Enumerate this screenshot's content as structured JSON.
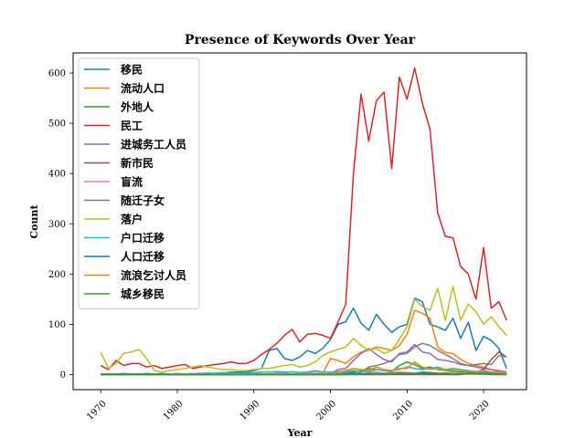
{
  "chart_data": {
    "type": "line",
    "title": "Presence of Keywords Over Year",
    "xlabel": "Year",
    "ylabel": "Count",
    "xlim": [
      1966.4,
      2025.6
    ],
    "ylim": [
      -30,
      640
    ],
    "x_ticks": [
      1970,
      1980,
      1990,
      2000,
      2010,
      2020
    ],
    "y_ticks": [
      0,
      100,
      200,
      300,
      400,
      500,
      600
    ],
    "grid": false,
    "legend_position": "top-left",
    "x": [
      1970,
      1971,
      1972,
      1973,
      1974,
      1975,
      1976,
      1977,
      1978,
      1979,
      1980,
      1981,
      1982,
      1983,
      1984,
      1985,
      1986,
      1987,
      1988,
      1989,
      1990,
      1991,
      1992,
      1993,
      1994,
      1995,
      1996,
      1997,
      1998,
      1999,
      2000,
      2001,
      2002,
      2003,
      2004,
      2005,
      2006,
      2007,
      2008,
      2009,
      2010,
      2011,
      2012,
      2013,
      2014,
      2015,
      2016,
      2017,
      2018,
      2019,
      2020,
      2021,
      2022,
      2023
    ],
    "series": [
      {
        "name": "移民",
        "color": "#1f77b4",
        "values": [
          1,
          1,
          1,
          2,
          1,
          1,
          2,
          1,
          2,
          1,
          2,
          1,
          2,
          2,
          3,
          2,
          3,
          5,
          5,
          5,
          8,
          12,
          48,
          52,
          32,
          28,
          35,
          48,
          42,
          52,
          70,
          100,
          105,
          132,
          102,
          88,
          120,
          100,
          84,
          95,
          100,
          152,
          145,
          100,
          95,
          88,
          112,
          72,
          104,
          48,
          76,
          68,
          52,
          12
        ]
      },
      {
        "name": "流动人口",
        "color": "#ff7f0e",
        "values": [
          0,
          0,
          0,
          0,
          0,
          0,
          0,
          0,
          0,
          0,
          0,
          0,
          0,
          0,
          0,
          0,
          0,
          0,
          0,
          0,
          0,
          0,
          0,
          0,
          0,
          0,
          0,
          0,
          1,
          2,
          32,
          28,
          22,
          35,
          45,
          48,
          55,
          52,
          48,
          58,
          80,
          128,
          122,
          112,
          55,
          44,
          42,
          30,
          22,
          18,
          15,
          10,
          5,
          2
        ]
      },
      {
        "name": "外地人",
        "color": "#2ca02c",
        "values": [
          1,
          1,
          1,
          1,
          1,
          1,
          1,
          1,
          1,
          1,
          1,
          1,
          1,
          1,
          1,
          1,
          1,
          1,
          1,
          1,
          1,
          1,
          1,
          1,
          1,
          1,
          1,
          1,
          1,
          1,
          1,
          2,
          3,
          5,
          8,
          12,
          10,
          8,
          6,
          18,
          25,
          20,
          12,
          15,
          10,
          8,
          6,
          5,
          5,
          4,
          3,
          3,
          2,
          1
        ]
      },
      {
        "name": "民工",
        "color": "#d62728",
        "values": [
          18,
          10,
          28,
          18,
          22,
          22,
          15,
          18,
          12,
          15,
          18,
          20,
          12,
          15,
          18,
          20,
          22,
          25,
          22,
          22,
          28,
          40,
          50,
          62,
          78,
          90,
          65,
          80,
          82,
          78,
          72,
          105,
          140,
          400,
          558,
          465,
          545,
          562,
          410,
          592,
          548,
          610,
          540,
          488,
          322,
          275,
          272,
          215,
          200,
          150,
          253,
          132,
          145,
          108
        ]
      },
      {
        "name": "进城务工人员",
        "color": "#9467bd",
        "values": [
          0,
          0,
          0,
          0,
          0,
          0,
          0,
          0,
          0,
          0,
          0,
          0,
          0,
          0,
          0,
          0,
          0,
          0,
          0,
          0,
          0,
          0,
          0,
          0,
          0,
          0,
          0,
          0,
          0,
          0,
          2,
          10,
          12,
          28,
          42,
          52,
          40,
          30,
          25,
          42,
          45,
          60,
          45,
          42,
          30,
          28,
          25,
          20,
          18,
          15,
          12,
          10,
          8,
          5
        ]
      },
      {
        "name": "新市民",
        "color": "#8c564b",
        "values": [
          0,
          0,
          0,
          0,
          0,
          0,
          0,
          0,
          0,
          0,
          0,
          0,
          0,
          0,
          0,
          0,
          0,
          0,
          0,
          0,
          0,
          0,
          0,
          0,
          0,
          0,
          0,
          0,
          0,
          0,
          0,
          0,
          0,
          0,
          0,
          0,
          0,
          0,
          0,
          0,
          0,
          0,
          0,
          0,
          0,
          0,
          0,
          0,
          2,
          5,
          10,
          30,
          45,
          35
        ]
      },
      {
        "name": "盲流",
        "color": "#e377c2",
        "values": [
          0,
          0,
          0,
          0,
          0,
          0,
          0,
          0,
          0,
          1,
          2,
          1,
          2,
          3,
          2,
          2,
          3,
          2,
          1,
          1,
          2,
          5,
          5,
          4,
          3,
          6,
          4,
          3,
          5,
          5,
          4,
          6,
          5,
          8,
          6,
          4,
          5,
          3,
          4,
          5,
          4,
          3,
          4,
          3,
          2,
          3,
          2,
          2,
          1,
          1,
          1,
          1,
          1,
          0
        ]
      },
      {
        "name": "随迁子女",
        "color": "#7f7f7f",
        "values": [
          0,
          0,
          0,
          0,
          0,
          0,
          0,
          0,
          0,
          0,
          0,
          0,
          0,
          0,
          0,
          0,
          0,
          0,
          0,
          0,
          0,
          0,
          0,
          0,
          0,
          0,
          0,
          0,
          0,
          0,
          0,
          0,
          0,
          0,
          5,
          15,
          18,
          22,
          28,
          40,
          42,
          55,
          62,
          58,
          48,
          40,
          32,
          22,
          18,
          20,
          22,
          20,
          38,
          35
        ]
      },
      {
        "name": "落户",
        "color": "#bcbd22",
        "values": [
          45,
          12,
          22,
          42,
          45,
          50,
          32,
          8,
          5,
          8,
          10,
          12,
          15,
          18,
          15,
          12,
          10,
          10,
          8,
          8,
          10,
          12,
          12,
          15,
          18,
          20,
          15,
          18,
          25,
          38,
          45,
          50,
          55,
          72,
          58,
          48,
          52,
          42,
          48,
          70,
          95,
          150,
          135,
          128,
          172,
          108,
          175,
          108,
          140,
          125,
          100,
          115,
          95,
          78
        ]
      },
      {
        "name": "户口迁移",
        "color": "#17becf",
        "values": [
          0,
          0,
          0,
          0,
          0,
          0,
          0,
          0,
          0,
          0,
          0,
          1,
          1,
          1,
          2,
          3,
          4,
          3,
          3,
          3,
          4,
          5,
          5,
          6,
          5,
          5,
          4,
          5,
          8,
          5,
          5,
          6,
          6,
          8,
          6,
          6,
          10,
          8,
          8,
          10,
          15,
          12,
          10,
          12,
          15,
          10,
          12,
          10,
          8,
          6,
          5,
          5,
          3,
          2
        ]
      },
      {
        "name": "人口迁移",
        "color": "#1f77b4",
        "values": [
          0,
          0,
          0,
          0,
          0,
          0,
          0,
          0,
          0,
          0,
          0,
          0,
          0,
          0,
          0,
          0,
          0,
          0,
          0,
          0,
          0,
          0,
          0,
          0,
          0,
          0,
          0,
          0,
          0,
          0,
          0,
          0,
          2,
          3,
          2,
          1,
          2,
          1,
          2,
          3,
          2,
          2,
          3,
          2,
          2,
          3,
          2,
          1,
          2,
          1,
          1,
          1,
          1,
          0
        ]
      },
      {
        "name": "流浪乞讨人员",
        "color": "#ff7f0e",
        "values": [
          0,
          0,
          0,
          0,
          0,
          0,
          0,
          0,
          0,
          0,
          0,
          0,
          0,
          0,
          0,
          0,
          0,
          0,
          0,
          0,
          0,
          0,
          0,
          0,
          0,
          0,
          0,
          0,
          0,
          0,
          0,
          5,
          8,
          12,
          10,
          8,
          15,
          10,
          8,
          12,
          12,
          25,
          15,
          10,
          12,
          8,
          10,
          8,
          6,
          5,
          8,
          5,
          4,
          3
        ]
      },
      {
        "name": "城乡移民",
        "color": "#2ca02c",
        "values": [
          0,
          0,
          0,
          0,
          0,
          0,
          0,
          0,
          0,
          0,
          0,
          0,
          0,
          0,
          0,
          0,
          0,
          0,
          0,
          0,
          0,
          0,
          0,
          0,
          0,
          0,
          0,
          0,
          0,
          0,
          0,
          0,
          0,
          1,
          1,
          2,
          1,
          1,
          2,
          2,
          3,
          2,
          5,
          4,
          3,
          2,
          2,
          1,
          1,
          1,
          1,
          0,
          0,
          0
        ]
      }
    ]
  }
}
